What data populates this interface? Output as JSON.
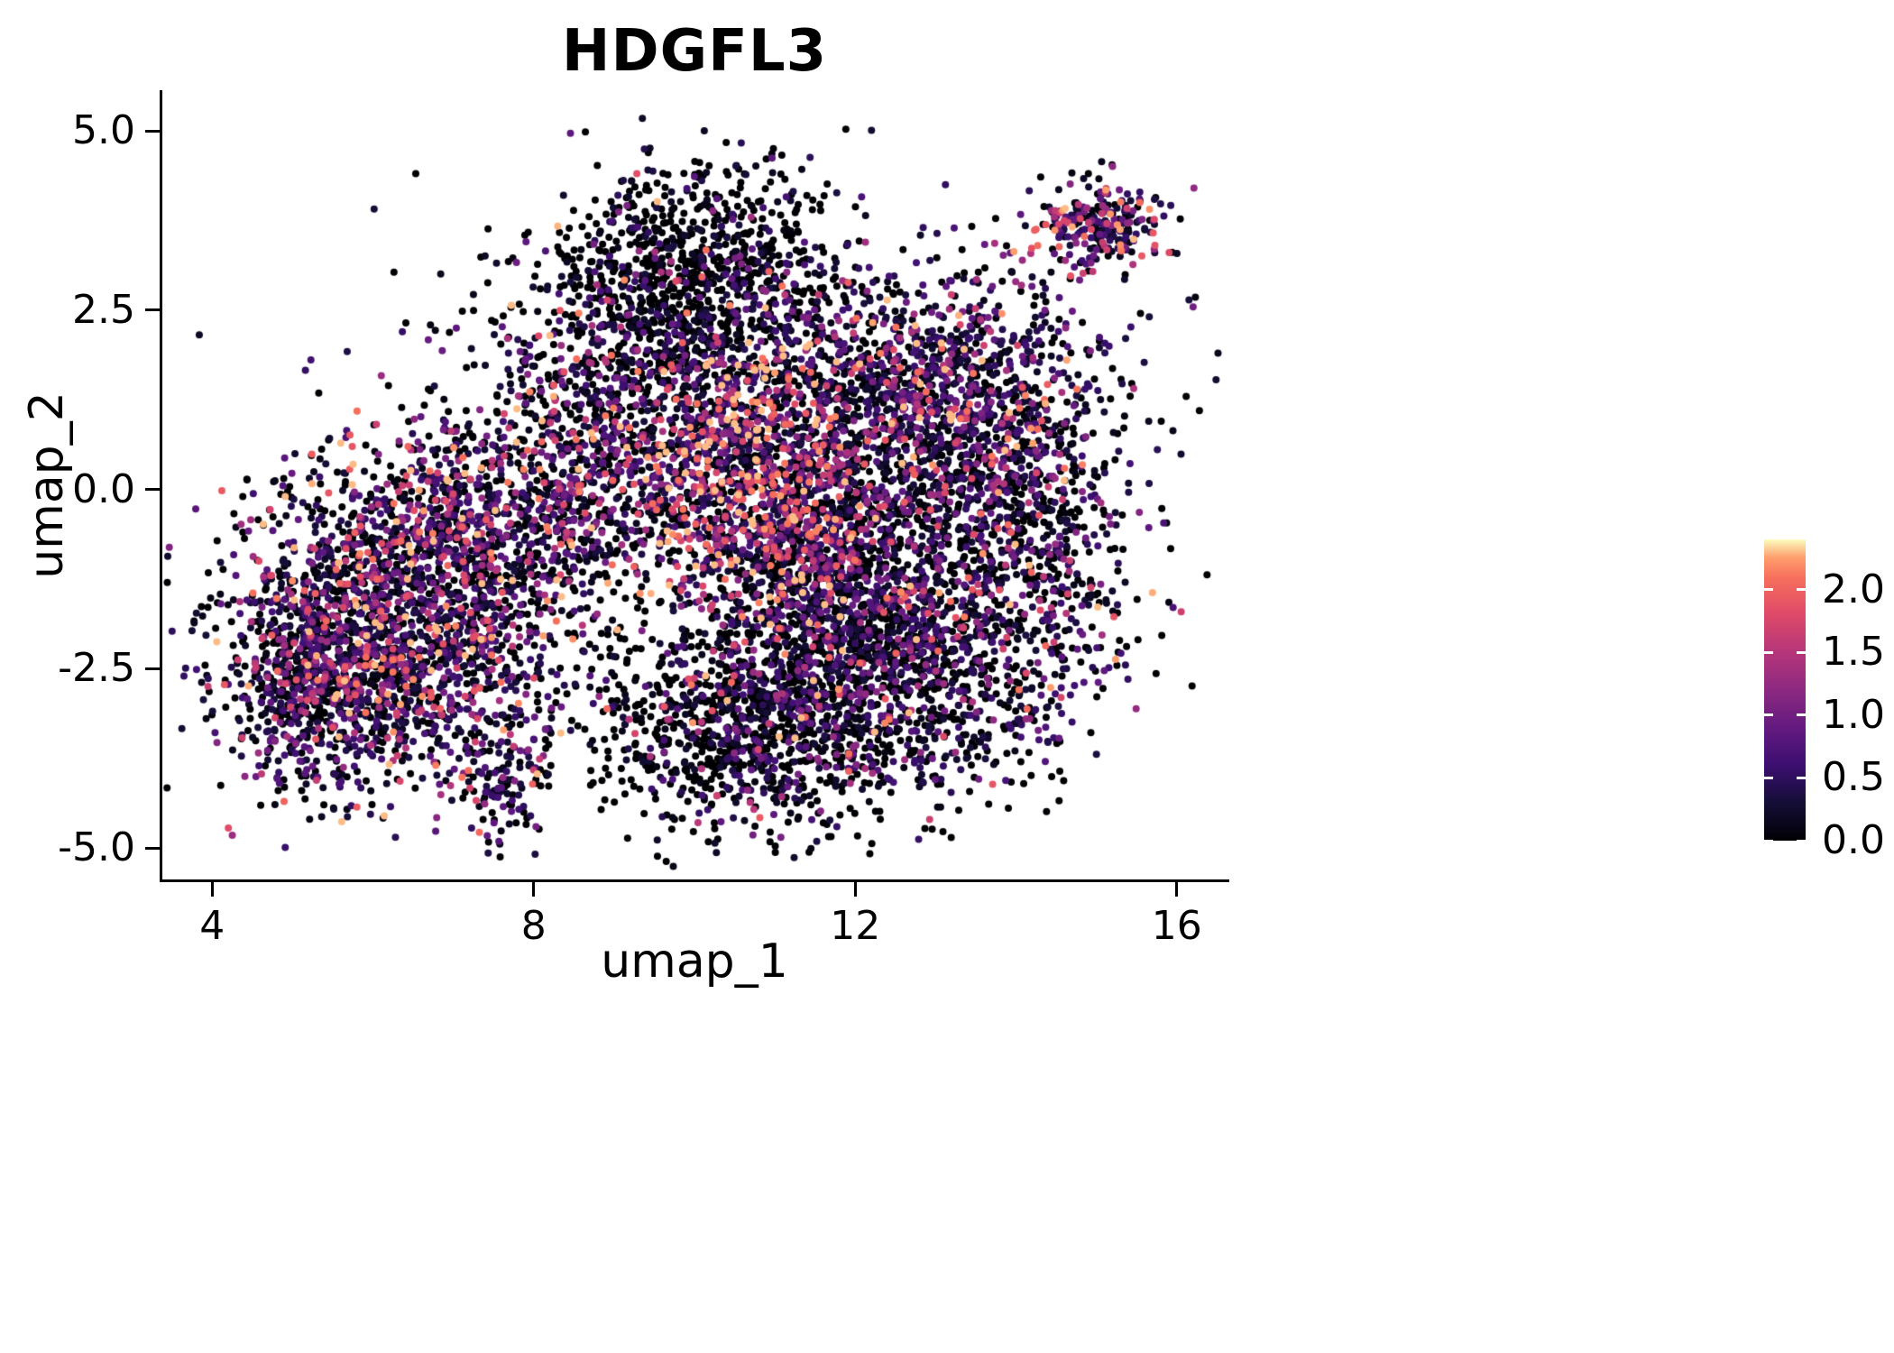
{
  "chart_data": {
    "type": "scatter",
    "title": "HDGFL3",
    "xlabel": "umap_1",
    "ylabel": "umap_2",
    "xlim": [
      3.38,
      16.62
    ],
    "ylim": [
      -5.44,
      5.57
    ],
    "grid": false,
    "background": "#ffffff",
    "x_ticks": {
      "values": [
        4,
        8,
        12,
        16
      ],
      "labels": [
        "4",
        "8",
        "12",
        "16"
      ]
    },
    "y_ticks": {
      "values": [
        5.0,
        2.5,
        0.0,
        -2.5,
        -5.0
      ],
      "labels": [
        "5.0",
        "2.5",
        "0.0",
        "-2.5",
        "-5.0"
      ]
    },
    "colorbar": {
      "position": "right",
      "ticks": {
        "values": [
          2.0,
          1.5,
          1.0,
          0.5,
          0.0
        ],
        "labels": [
          "2.0",
          "1.5",
          "1.0",
          "0.5",
          "0.0"
        ]
      },
      "range": [
        0,
        2.4
      ],
      "colormap": "magma",
      "stops": [
        [
          0.0,
          "#000004"
        ],
        [
          0.125,
          "#140e36"
        ],
        [
          0.25,
          "#3b0f70"
        ],
        [
          0.375,
          "#641a80"
        ],
        [
          0.5,
          "#8c2981"
        ],
        [
          0.625,
          "#b5367a"
        ],
        [
          0.75,
          "#de4968"
        ],
        [
          0.875,
          "#f7705c"
        ],
        [
          0.94,
          "#fe9f6d"
        ],
        [
          1.0,
          "#fcfdbf"
        ]
      ]
    },
    "point_radius_px": 4,
    "n_points_total": 11485,
    "note": "Single-cell UMAP feature plot of HDGFL3 expression (~11,000 cells). Each point is a cell colored by expression from 0 (black) through purple/magenta to ~2.4 (pale yellow). The point cloud is summarized as gaussian clusters: a large left lobe with many medium/high-expressing cells, a bright high-expression streak in the center, a mostly-black top protrusion, a dense purple right lobe, a darker bottom region, a small hanging tail at bottom-left-center, and a detached purple satellite cluster at top right.",
    "clusters": [
      {
        "name": "left-lobe-core",
        "cx": 6.3,
        "cy": -2.1,
        "sx": 1.05,
        "sy": 0.95,
        "n": 1600,
        "p_zero": 0.3,
        "mid": 0.85,
        "p_hot": 0.07
      },
      {
        "name": "left-lobe-upper",
        "cx": 7.0,
        "cy": -0.5,
        "sx": 1.0,
        "sy": 0.75,
        "n": 800,
        "p_zero": 0.32,
        "mid": 0.9,
        "p_hot": 0.08
      },
      {
        "name": "left-west-edge",
        "cx": 5.3,
        "cy": -2.7,
        "sx": 0.5,
        "sy": 0.8,
        "n": 420,
        "p_zero": 0.45,
        "mid": 0.65,
        "p_hot": 0.02
      },
      {
        "name": "bottom-tail",
        "cx": 7.6,
        "cy": -4.05,
        "sx": 0.3,
        "sy": 0.45,
        "n": 130,
        "p_zero": 0.35,
        "mid": 0.7,
        "p_hot": 0.05
      },
      {
        "name": "far-left-spur",
        "cx": 4.95,
        "cy": -2.4,
        "sx": 0.18,
        "sy": 0.3,
        "n": 45,
        "p_zero": 0.4,
        "mid": 0.7,
        "p_hot": 0.03
      },
      {
        "name": "bridge",
        "cx": 8.8,
        "cy": 0.4,
        "sx": 0.8,
        "sy": 1.0,
        "n": 700,
        "p_zero": 0.4,
        "mid": 0.8,
        "p_hot": 0.06
      },
      {
        "name": "north-cap-dark",
        "cx": 10.1,
        "cy": 3.4,
        "sx": 0.85,
        "sy": 0.6,
        "n": 550,
        "p_zero": 0.72,
        "mid": 0.5,
        "p_hot": 0.01
      },
      {
        "name": "north-mid",
        "cx": 9.7,
        "cy": 2.2,
        "sx": 1.1,
        "sy": 0.7,
        "n": 650,
        "p_zero": 0.58,
        "mid": 0.6,
        "p_hot": 0.02
      },
      {
        "name": "center-hot",
        "cx": 10.6,
        "cy": 0.3,
        "sx": 0.75,
        "sy": 0.95,
        "n": 850,
        "p_zero": 0.22,
        "mid": 1.2,
        "p_hot": 0.16
      },
      {
        "name": "center-hot-lower",
        "cx": 11.3,
        "cy": -0.7,
        "sx": 0.5,
        "sy": 0.7,
        "n": 350,
        "p_zero": 0.3,
        "mid": 1.1,
        "p_hot": 0.12
      },
      {
        "name": "right-upper-purple",
        "cx": 12.9,
        "cy": 1.2,
        "sx": 1.1,
        "sy": 0.95,
        "n": 1400,
        "p_zero": 0.3,
        "mid": 0.85,
        "p_hot": 0.03
      },
      {
        "name": "right-mid",
        "cx": 12.3,
        "cy": -0.8,
        "sx": 1.0,
        "sy": 0.9,
        "n": 900,
        "p_zero": 0.45,
        "mid": 0.75,
        "p_hot": 0.03
      },
      {
        "name": "right-lower",
        "cx": 12.2,
        "cy": -2.6,
        "sx": 1.2,
        "sy": 0.9,
        "n": 1400,
        "p_zero": 0.5,
        "mid": 0.7,
        "p_hot": 0.02
      },
      {
        "name": "bottom-center-dark",
        "cx": 10.6,
        "cy": -3.3,
        "sx": 0.9,
        "sy": 0.7,
        "n": 700,
        "p_zero": 0.6,
        "mid": 0.6,
        "p_hot": 0.01
      },
      {
        "name": "east-edge",
        "cx": 14.2,
        "cy": -0.6,
        "sx": 0.6,
        "sy": 1.2,
        "n": 500,
        "p_zero": 0.45,
        "mid": 0.7,
        "p_hot": 0.03
      },
      {
        "name": "satellite-top-right",
        "cx": 15.0,
        "cy": 3.65,
        "sx": 0.42,
        "sy": 0.3,
        "n": 260,
        "p_zero": 0.18,
        "mid": 1.0,
        "p_hot": 0.08
      },
      {
        "name": "sparse-halo",
        "cx": 10.2,
        "cy": -0.2,
        "sx": 3.2,
        "sy": 2.2,
        "n": 230,
        "p_zero": 0.5,
        "mid": 0.6,
        "p_hot": 0.02
      }
    ]
  }
}
